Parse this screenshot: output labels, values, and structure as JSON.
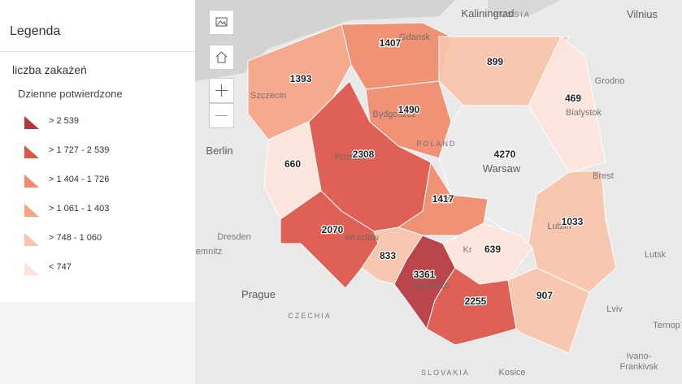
{
  "legend": {
    "title": "Legenda",
    "layer": "liczba zakażeń",
    "field": "Dzienne potwierdzone",
    "classes": [
      {
        "label": "> 2 539",
        "color": "#b5363f"
      },
      {
        "label": "> 1 727 - 2 539",
        "color": "#dd5448"
      },
      {
        "label": "> 1 404 - 1 726",
        "color": "#f08a6b"
      },
      {
        "label": "> 1 061 - 1 403",
        "color": "#f5a486"
      },
      {
        "label": "> 748 - 1 060",
        "color": "#f9c3aa"
      },
      {
        "label": "< 747",
        "color": "#fce4da"
      }
    ]
  },
  "map": {
    "regions": [
      {
        "value": 1393,
        "color": "#f5a486"
      },
      {
        "value": 1407,
        "color": "#f08a6b"
      },
      {
        "value": 899,
        "color": "#f9c3aa"
      },
      {
        "value": 469,
        "color": "#fce4da"
      },
      {
        "value": 1490,
        "color": "#f08a6b"
      },
      {
        "value": 660,
        "color": "#fce4da"
      },
      {
        "value": 2308,
        "color": "#dd5448"
      },
      {
        "value": 4270,
        "color": "#ebebeb"
      },
      {
        "value": 1417,
        "color": "#f08a6b"
      },
      {
        "value": 2070,
        "color": "#dd5448"
      },
      {
        "value": 833,
        "color": "#f9c3aa"
      },
      {
        "value": 3361,
        "color": "#b5363f"
      },
      {
        "value": 639,
        "color": "#fce4da"
      },
      {
        "value": 2255,
        "color": "#dd5448"
      },
      {
        "value": 1033,
        "color": "#f9c3aa"
      },
      {
        "value": 907,
        "color": "#f9c3aa"
      }
    ],
    "places": [
      "Kaliningrad",
      "RUSSIA",
      "Vilnius",
      "Grodno",
      "Bialystok",
      "Brest",
      "Berlin",
      "Szczecin",
      "Gdansk",
      "Bydgoszcz",
      "Poznan",
      "POLAND",
      "Warsaw",
      "Dresden",
      "emnitz",
      "Prague",
      "CZECHIA",
      "Wroclaw",
      "Katowice",
      "Kr",
      "Lublin",
      "Lutsk",
      "Lviv",
      "Ternop",
      "Ivano-",
      "Frankivsk",
      "SLOVAKIA",
      "Kosice"
    ]
  }
}
